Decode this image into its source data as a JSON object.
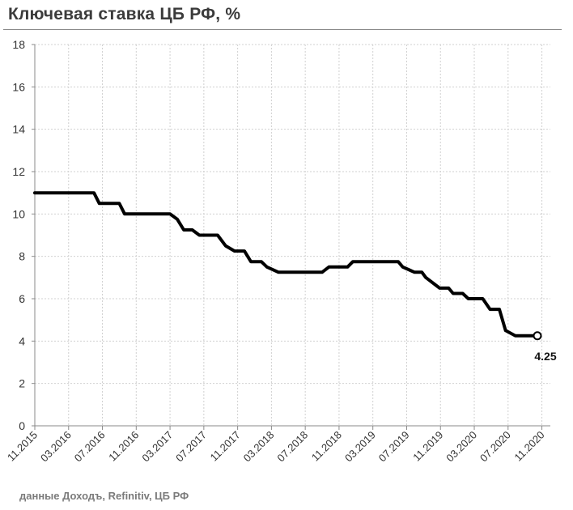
{
  "title": "Ключевая ставка ЦБ РФ, %",
  "source": "данные Доходъ, Refinitiv, ЦБ РФ",
  "chart_data": {
    "type": "line",
    "title": "Ключевая ставка ЦБ РФ, %",
    "xlabel": "",
    "ylabel": "",
    "ylim": [
      0,
      18
    ],
    "yticks": [
      0,
      2,
      4,
      6,
      8,
      10,
      12,
      14,
      16,
      18
    ],
    "grid": true,
    "xlim": [
      "2015-11",
      "2020-12"
    ],
    "xticks": [
      "11.2015",
      "03.2016",
      "07.2016",
      "11.2016",
      "03.2017",
      "07.2017",
      "11.2017",
      "03.2018",
      "07.2018",
      "11.2018",
      "03.2019",
      "07.2019",
      "11.2019",
      "03.2020",
      "07.2020",
      "11.2020"
    ],
    "line_color": "#000000",
    "end_label": "4.25",
    "series": [
      {
        "name": "",
        "points": [
          {
            "x": "2015-11-01",
            "y": 11.0
          },
          {
            "x": "2016-06-01",
            "y": 11.0
          },
          {
            "x": "2016-06-20",
            "y": 10.5
          },
          {
            "x": "2016-09-01",
            "y": 10.5
          },
          {
            "x": "2016-09-20",
            "y": 10.0
          },
          {
            "x": "2017-03-01",
            "y": 10.0
          },
          {
            "x": "2017-03-27",
            "y": 9.75
          },
          {
            "x": "2017-04-20",
            "y": 9.25
          },
          {
            "x": "2017-05-20",
            "y": 9.25
          },
          {
            "x": "2017-06-15",
            "y": 9.0
          },
          {
            "x": "2017-08-20",
            "y": 9.0
          },
          {
            "x": "2017-09-18",
            "y": 8.5
          },
          {
            "x": "2017-10-20",
            "y": 8.25
          },
          {
            "x": "2017-11-25",
            "y": 8.25
          },
          {
            "x": "2017-12-18",
            "y": 7.75
          },
          {
            "x": "2018-01-25",
            "y": 7.75
          },
          {
            "x": "2018-02-15",
            "y": 7.5
          },
          {
            "x": "2018-03-26",
            "y": 7.25
          },
          {
            "x": "2018-09-01",
            "y": 7.25
          },
          {
            "x": "2018-09-25",
            "y": 7.5
          },
          {
            "x": "2018-12-01",
            "y": 7.5
          },
          {
            "x": "2018-12-20",
            "y": 7.75
          },
          {
            "x": "2019-06-01",
            "y": 7.75
          },
          {
            "x": "2019-06-17",
            "y": 7.5
          },
          {
            "x": "2019-07-29",
            "y": 7.25
          },
          {
            "x": "2019-08-25",
            "y": 7.25
          },
          {
            "x": "2019-09-09",
            "y": 7.0
          },
          {
            "x": "2019-10-28",
            "y": 6.5
          },
          {
            "x": "2019-11-30",
            "y": 6.5
          },
          {
            "x": "2019-12-16",
            "y": 6.25
          },
          {
            "x": "2020-01-20",
            "y": 6.25
          },
          {
            "x": "2020-02-10",
            "y": 6.0
          },
          {
            "x": "2020-04-01",
            "y": 6.0
          },
          {
            "x": "2020-04-27",
            "y": 5.5
          },
          {
            "x": "2020-05-30",
            "y": 5.5
          },
          {
            "x": "2020-06-22",
            "y": 4.5
          },
          {
            "x": "2020-07-27",
            "y": 4.25
          },
          {
            "x": "2020-10-15",
            "y": 4.25
          }
        ]
      }
    ]
  }
}
